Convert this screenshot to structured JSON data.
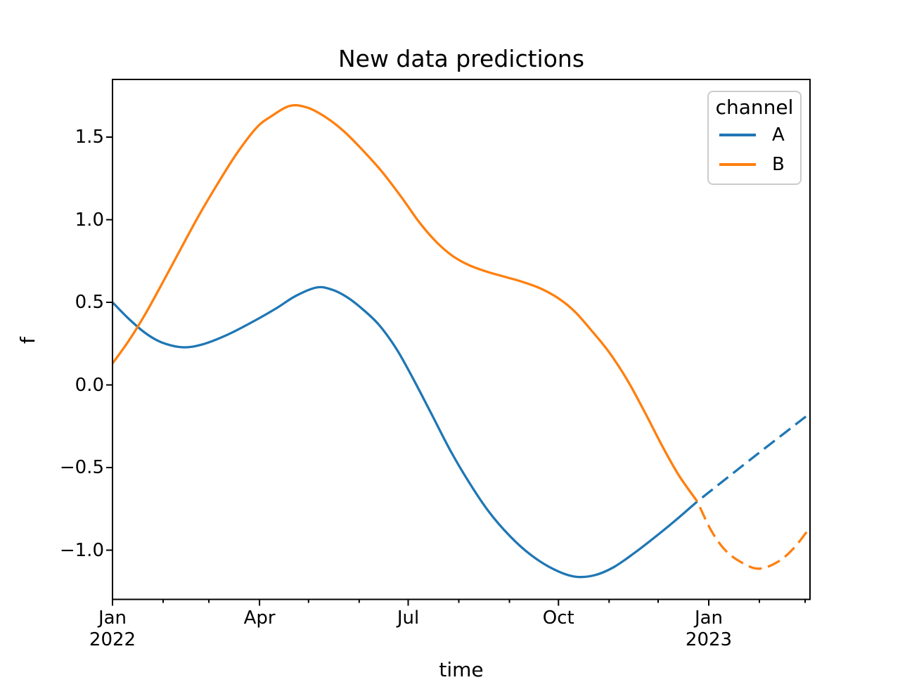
{
  "title": "New data predictions",
  "xlabel": "time",
  "ylabel": "f",
  "legend": {
    "title": "channel",
    "entries": [
      {
        "label": "A",
        "color": "#1f77b4"
      },
      {
        "label": "B",
        "color": "#ff7f0e"
      }
    ]
  },
  "colors": {
    "blue": "#1f77b4",
    "orange": "#ff7f0e",
    "axis": "#000000",
    "legend_border": "#cccccc",
    "background": "#ffffff"
  },
  "chart_data": {
    "type": "line",
    "title": "New data predictions",
    "xlabel": "time",
    "ylabel": "f",
    "x_unit": "days since 2022-01-01",
    "xlim_days": [
      0,
      427
    ],
    "ylim": [
      -1.3,
      1.85
    ],
    "grid": false,
    "legend_position": "upper right",
    "x_major_ticks": [
      {
        "day": 0,
        "label": "Jan",
        "sublabel": "2022"
      },
      {
        "day": 90,
        "label": "Apr",
        "sublabel": ""
      },
      {
        "day": 181,
        "label": "Jul",
        "sublabel": ""
      },
      {
        "day": 273,
        "label": "Oct",
        "sublabel": ""
      },
      {
        "day": 365,
        "label": "Jan",
        "sublabel": "2023"
      }
    ],
    "x_minor_tick_days": [
      31,
      59,
      120,
      151,
      212,
      243,
      304,
      334,
      396,
      424
    ],
    "y_ticks": [
      {
        "value": 1.5,
        "label": "1.5"
      },
      {
        "value": 1.0,
        "label": "1.0"
      },
      {
        "value": 0.5,
        "label": "0.5"
      },
      {
        "value": 0.0,
        "label": "0.0"
      },
      {
        "value": -0.5,
        "label": "−0.5"
      },
      {
        "value": -1.0,
        "label": "−1.0"
      }
    ],
    "series": [
      {
        "name": "A",
        "channel": "A",
        "color": "#1f77b4",
        "style": "solid",
        "points": [
          [
            0,
            0.5
          ],
          [
            10,
            0.4
          ],
          [
            20,
            0.315
          ],
          [
            30,
            0.258
          ],
          [
            43,
            0.228
          ],
          [
            55,
            0.245
          ],
          [
            70,
            0.302
          ],
          [
            85,
            0.378
          ],
          [
            100,
            0.462
          ],
          [
            112,
            0.538
          ],
          [
            125,
            0.59
          ],
          [
            134,
            0.578
          ],
          [
            143,
            0.535
          ],
          [
            152,
            0.468
          ],
          [
            163,
            0.365
          ],
          [
            174,
            0.215
          ],
          [
            185,
            0.02
          ],
          [
            196,
            -0.19
          ],
          [
            207,
            -0.4
          ],
          [
            218,
            -0.585
          ],
          [
            230,
            -0.762
          ],
          [
            243,
            -0.912
          ],
          [
            256,
            -1.028
          ],
          [
            270,
            -1.115
          ],
          [
            283,
            -1.16
          ],
          [
            295,
            -1.152
          ],
          [
            307,
            -1.102
          ],
          [
            320,
            -1.013
          ],
          [
            335,
            -0.898
          ],
          [
            346,
            -0.808
          ],
          [
            358,
            -0.705
          ]
        ]
      },
      {
        "name": "A prediction",
        "channel": "A",
        "color": "#1f77b4",
        "style": "dashed",
        "points": [
          [
            358,
            -0.705
          ],
          [
            392,
            -0.44
          ],
          [
            427,
            -0.172
          ]
        ]
      },
      {
        "name": "B",
        "channel": "B",
        "color": "#ff7f0e",
        "style": "solid",
        "points": [
          [
            0,
            0.13
          ],
          [
            10,
            0.268
          ],
          [
            20,
            0.428
          ],
          [
            31,
            0.625
          ],
          [
            42,
            0.828
          ],
          [
            53,
            1.028
          ],
          [
            64,
            1.212
          ],
          [
            76,
            1.4
          ],
          [
            88,
            1.555
          ],
          [
            97,
            1.625
          ],
          [
            109,
            1.69
          ],
          [
            120,
            1.676
          ],
          [
            131,
            1.617
          ],
          [
            142,
            1.532
          ],
          [
            153,
            1.422
          ],
          [
            165,
            1.29
          ],
          [
            177,
            1.135
          ],
          [
            188,
            0.982
          ],
          [
            198,
            0.868
          ],
          [
            208,
            0.782
          ],
          [
            218,
            0.726
          ],
          [
            229,
            0.686
          ],
          [
            240,
            0.655
          ],
          [
            251,
            0.624
          ],
          [
            262,
            0.584
          ],
          [
            273,
            0.524
          ],
          [
            283,
            0.444
          ],
          [
            293,
            0.332
          ],
          [
            304,
            0.198
          ],
          [
            315,
            0.032
          ],
          [
            326,
            -0.168
          ],
          [
            337,
            -0.378
          ],
          [
            347,
            -0.552
          ],
          [
            358,
            -0.705
          ]
        ]
      },
      {
        "name": "B prediction",
        "channel": "B",
        "color": "#ff7f0e",
        "style": "dashed",
        "points": [
          [
            358,
            -0.705
          ],
          [
            366,
            -0.872
          ],
          [
            374,
            -0.988
          ],
          [
            383,
            -1.062
          ],
          [
            395,
            -1.112
          ],
          [
            407,
            -1.072
          ],
          [
            417,
            -0.988
          ],
          [
            427,
            -0.862
          ]
        ]
      }
    ]
  }
}
